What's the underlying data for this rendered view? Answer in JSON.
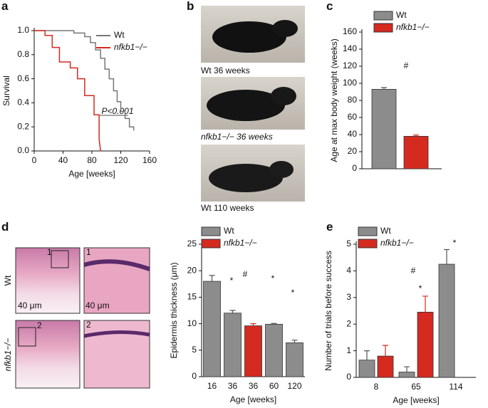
{
  "panel_labels": [
    "a",
    "b",
    "c",
    "d",
    "e"
  ],
  "photos": [
    "Wt 36 weeks",
    "nfkb1−/− 36 weeks",
    "Wt 110 weeks"
  ],
  "micrographs": {
    "rows": [
      "Wt",
      "nfkb1−/−"
    ],
    "insets": [
      "1",
      "2"
    ],
    "scale": "40 μm"
  },
  "chart_data": [
    {
      "type": "line",
      "xlabel": "Age [weeks]",
      "ylabel": "Survival",
      "xlim": [
        0,
        160
      ],
      "xticks": [
        0,
        40,
        80,
        120,
        160
      ],
      "ylim": [
        0,
        1
      ],
      "yticks": [
        {
          "value": 0,
          "label": "0.0"
        },
        {
          "value": 0.2,
          "label": "0.2"
        },
        {
          "value": 0.4,
          "label": "0.4"
        },
        {
          "value": 0.6,
          "label": "0.6"
        },
        {
          "value": 0.8,
          "label": "0.8"
        },
        {
          "value": 1,
          "label": "1.0"
        }
      ],
      "annotations": [
        {
          "text": "P<0.001",
          "color": "#111"
        }
      ],
      "series": [
        {
          "name": "Wt",
          "color": "#777777",
          "x": [
            0,
            55,
            55,
            70,
            70,
            78,
            78,
            85,
            85,
            92,
            92,
            98,
            98,
            104,
            104,
            110,
            110,
            115,
            115,
            120,
            120,
            126,
            126,
            132,
            132,
            138,
            138
          ],
          "values": [
            1,
            1,
            0.98,
            0.98,
            0.95,
            0.95,
            0.9,
            0.9,
            0.84,
            0.84,
            0.77,
            0.77,
            0.68,
            0.68,
            0.6,
            0.6,
            0.5,
            0.5,
            0.41,
            0.41,
            0.33,
            0.33,
            0.27,
            0.27,
            0.2,
            0.2,
            0.17
          ]
        },
        {
          "name": "nfkb1−/−",
          "color": "#d42a20",
          "x": [
            0,
            15,
            15,
            25,
            25,
            35,
            35,
            50,
            50,
            60,
            60,
            70,
            70,
            83,
            83,
            90,
            90,
            92
          ],
          "values": [
            1,
            1,
            0.96,
            0.96,
            0.86,
            0.86,
            0.74,
            0.74,
            0.69,
            0.69,
            0.6,
            0.6,
            0.46,
            0.46,
            0.3,
            0.3,
            0.1,
            0
          ]
        }
      ]
    },
    {
      "type": "bar",
      "ylabel": "Age at max body weight (weeks)",
      "categories": [
        null
      ],
      "ylim": [
        0,
        160
      ],
      "yticks": [
        0,
        20,
        40,
        60,
        80,
        100,
        120,
        140,
        160
      ],
      "annotations": [
        {
          "text": "#",
          "color": "#d42a20"
        }
      ],
      "series": [
        {
          "name": "Wt",
          "color": "#8c8c8c",
          "values": [
            93
          ],
          "errors": [
            2
          ]
        },
        {
          "name": "nfkb1−/−",
          "color": "#d42a20",
          "values": [
            38
          ],
          "errors": [
            1.5
          ]
        }
      ]
    },
    {
      "type": "bar",
      "xlabel": "Age [weeks]",
      "ylabel": "Epidermis thickness (μm)",
      "categories": [
        "16",
        "36",
        "36",
        "60",
        "120"
      ],
      "ylim": [
        0,
        25
      ],
      "yticks": [
        0,
        5,
        10,
        15,
        20,
        25
      ],
      "annotations": [
        {
          "text": "*",
          "color": "#111"
        },
        {
          "text": "*",
          "color": "#111"
        },
        {
          "text": "*",
          "color": "#111"
        },
        {
          "text": "#",
          "color": "#d42a20"
        }
      ],
      "series": [
        {
          "name": "Wt",
          "color": "#8c8c8c",
          "values": [
            18,
            12,
            null,
            9.9,
            6.4
          ],
          "errors": [
            1.1,
            0.5,
            null,
            0.15,
            0.5
          ]
        },
        {
          "name": "nfkb1−/−",
          "color": "#d42a20",
          "values": [
            null,
            null,
            9.6,
            null,
            null
          ],
          "errors": [
            null,
            null,
            0.4,
            null,
            null
          ]
        }
      ]
    },
    {
      "type": "bar",
      "xlabel": "Age [weeks]",
      "ylabel": "Number of trials before success",
      "categories": [
        "8",
        "65",
        "114"
      ],
      "ylim": [
        0,
        5
      ],
      "yticks": [
        0,
        1,
        2,
        3,
        4,
        5
      ],
      "annotations": [
        {
          "text": "*",
          "color": "#111"
        },
        {
          "text": "*",
          "color": "#d42a20"
        },
        {
          "text": "#",
          "color": "#d42a20"
        }
      ],
      "series": [
        {
          "name": "Wt",
          "color": "#8c8c8c",
          "values": [
            0.65,
            0.2,
            4.25
          ],
          "errors": [
            0.35,
            0.2,
            0.55
          ]
        },
        {
          "name": "nfkb1−/−",
          "color": "#d42a20",
          "values": [
            0.8,
            2.45,
            null
          ],
          "errors": [
            0.4,
            0.6,
            null
          ]
        }
      ]
    }
  ]
}
